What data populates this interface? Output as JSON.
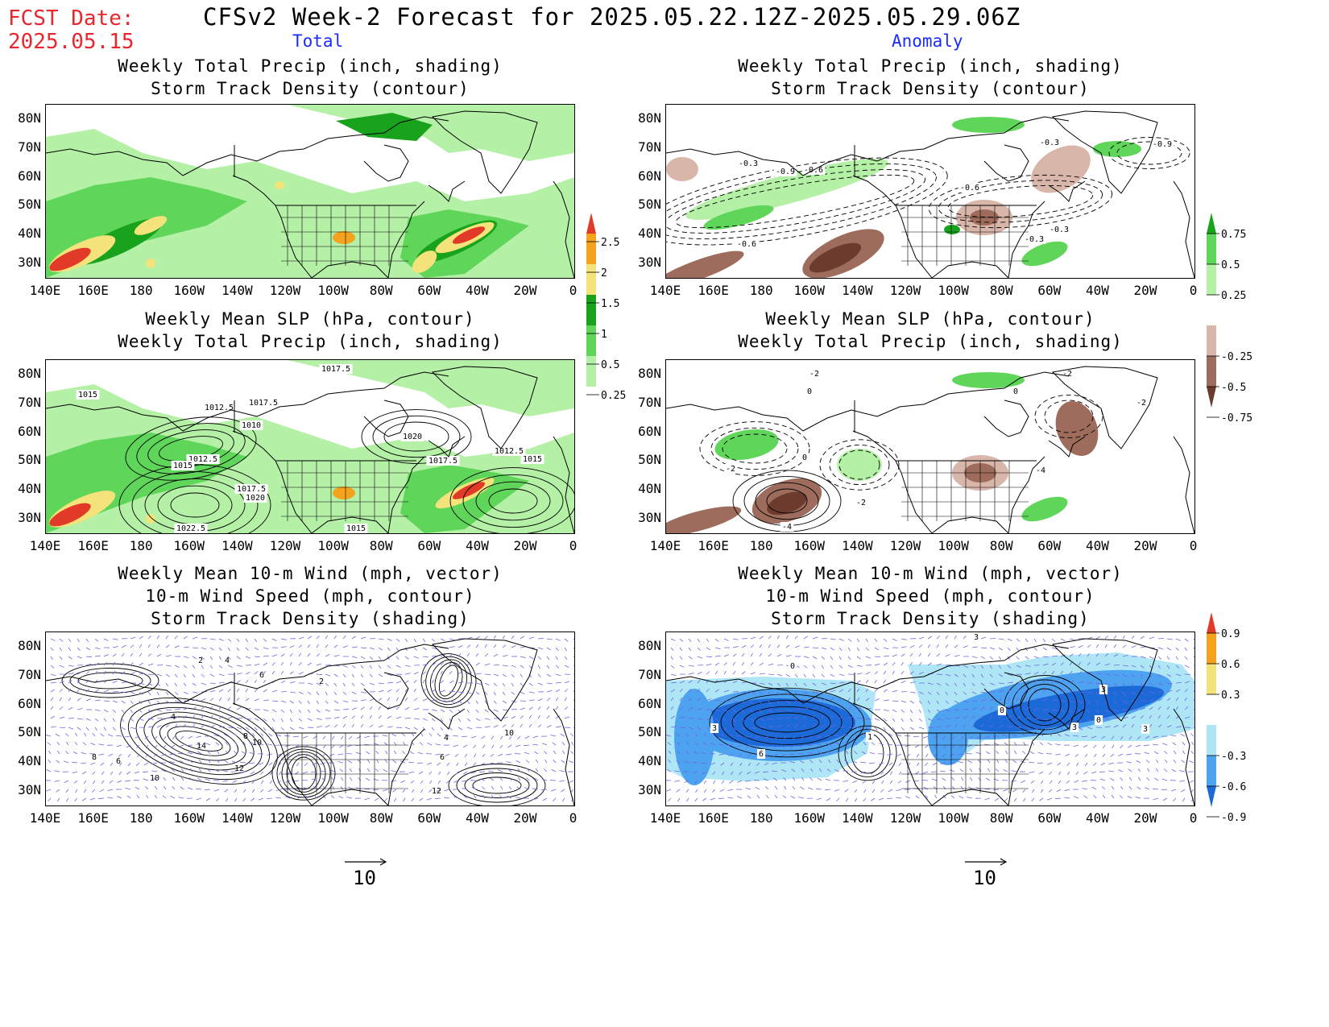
{
  "header": {
    "fcst_label": "FCST Date:",
    "fcst_date": "2025.05.15",
    "title": "CFSv2 Week-2 Forecast for 2025.05.22.12Z-2025.05.29.06Z",
    "col_total": "Total",
    "col_anomaly": "Anomaly"
  },
  "panels": {
    "p1": {
      "line1": "Weekly Total Precip (inch, shading)",
      "line2": "Storm Track Density (contour)"
    },
    "p2": {
      "line1": "Weekly Total Precip (inch, shading)",
      "line2": "Storm Track Density (contour)"
    },
    "p3": {
      "line1": "Weekly Mean SLP (hPa, contour)",
      "line2": "Weekly Total Precip (inch, shading)"
    },
    "p4": {
      "line1": "Weekly Mean SLP (hPa, contour)",
      "line2": "Weekly Total Precip (inch, shading)"
    },
    "p5": {
      "line1": "Weekly Mean 10-m Wind (mph, vector)",
      "line2": "10-m Wind Speed (mph, contour)",
      "line3": "Storm Track Density (shading)"
    },
    "p6": {
      "line1": "Weekly Mean 10-m Wind (mph, vector)",
      "line2": "10-m Wind Speed (mph, contour)",
      "line3": "Storm Track Density (shading)"
    }
  },
  "axes": {
    "lat": [
      "80N",
      "70N",
      "60N",
      "50N",
      "40N",
      "30N"
    ],
    "lon": [
      "140E",
      "160E",
      "180",
      "160W",
      "140W",
      "120W",
      "100W",
      "80W",
      "60W",
      "40W",
      "20W",
      "0"
    ]
  },
  "slp_labels": [
    "1017.5",
    "1015",
    "1012.5",
    "1017.5",
    "1010",
    "1020",
    "1012.5",
    "1015",
    "1017.5",
    "1012.5",
    "1015",
    "1017.5",
    "1020",
    "1022.5",
    "1015"
  ],
  "slp_anom_labels": [
    "-2",
    "0",
    "0",
    "-2",
    "-2",
    "0",
    "-2",
    "-4",
    "-4",
    "-2"
  ],
  "storm_anom_labels": [
    "-0.3",
    "-0.9",
    "-0.6",
    "-0.6",
    "-0.3",
    "-0.9",
    "-0.3",
    "-0.3",
    "-0.6"
  ],
  "wind_labels": [
    "2",
    "4",
    "6",
    "2",
    "4",
    "8",
    "10",
    "14",
    "12",
    "10",
    "8",
    "6",
    "4",
    "6",
    "12",
    "10"
  ],
  "wind_anom_labels": [
    "0",
    "3",
    "0",
    "3",
    "0",
    "3",
    "6",
    "3",
    "1",
    "3"
  ],
  "colorbars": {
    "precip_total": [
      "0.25",
      "0.5",
      "1",
      "1.5",
      "2",
      "2.5"
    ],
    "precip_anom": [
      "0.75",
      "0.5",
      "0.25",
      "-0.25",
      "-0.5",
      "-0.75"
    ],
    "storm_anom": [
      "0.9",
      "0.6",
      "0.3",
      "-0.3",
      "-0.6",
      "-0.9"
    ]
  },
  "vector_ref": {
    "left": "10",
    "right": "10"
  },
  "colors": {
    "title_red": "#e8262d",
    "label_blue": "#1b2bff",
    "green_light": "#b4f0a6",
    "green_mid": "#5fd65a",
    "green_dark": "#19a31d",
    "yellow": "#f4e27a",
    "orange": "#f5a21c",
    "red": "#e23a28",
    "brown_light": "#d9b6aa",
    "brown_mid": "#9e6c5c",
    "brown_dark": "#6b3b2e",
    "blue_light": "#aee6f5",
    "blue_mid": "#4ea3f0",
    "blue_dark": "#1c6ad8",
    "vector": "#6f63e6"
  }
}
